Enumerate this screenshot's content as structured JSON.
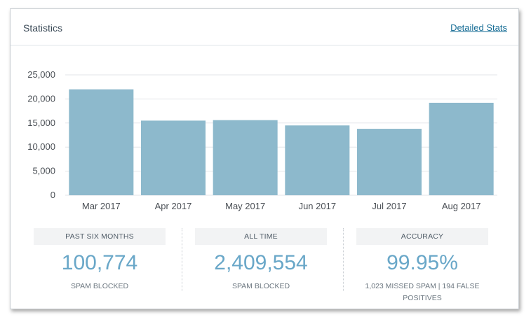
{
  "header": {
    "title": "Statistics",
    "detail_link": "Detailed Stats"
  },
  "colors": {
    "bar": "#8db9cc",
    "value": "#69a7c8",
    "link": "#1a6f97"
  },
  "chart_data": {
    "type": "bar",
    "categories": [
      "Mar 2017",
      "Apr 2017",
      "May 2017",
      "Jun 2017",
      "Jul 2017",
      "Aug 2017"
    ],
    "values": [
      22000,
      15500,
      15600,
      14500,
      13800,
      19200
    ],
    "yticks": [
      "0",
      "5,000",
      "10,000",
      "15,000",
      "20,000",
      "25,000"
    ],
    "ylim": [
      0,
      25000
    ],
    "grid": true
  },
  "stats": [
    {
      "header": "PAST SIX MONTHS",
      "value": "100,774",
      "caption": "SPAM BLOCKED"
    },
    {
      "header": "ALL TIME",
      "value": "2,409,554",
      "caption": "SPAM BLOCKED"
    },
    {
      "header": "ACCURACY",
      "value": "99.95%",
      "caption": "1,023 MISSED SPAM | 194 FALSE POSITIVES"
    }
  ]
}
